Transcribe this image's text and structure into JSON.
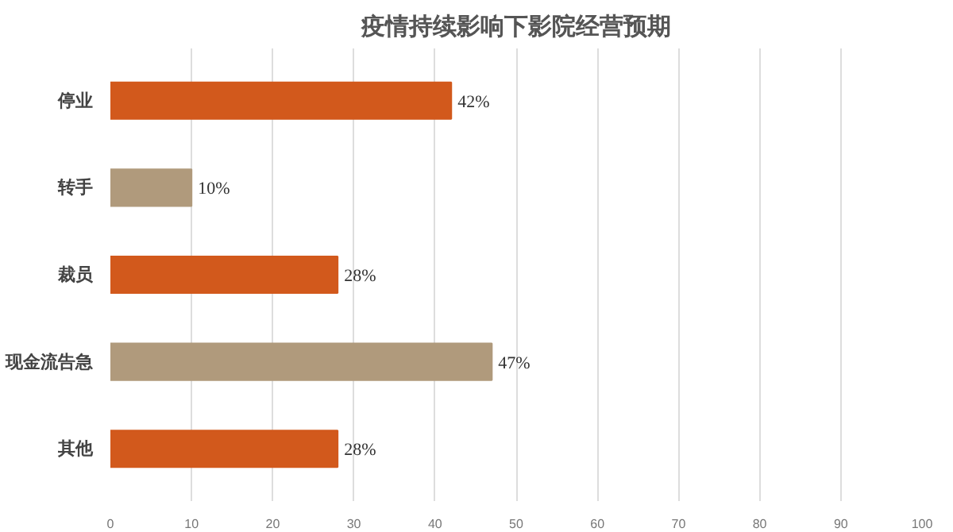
{
  "chart_data": {
    "type": "bar",
    "orientation": "horizontal",
    "title": "疫情持续影响下影院经营预期",
    "categories": [
      "停业",
      "转手",
      "裁员",
      "现金流告急",
      "其他"
    ],
    "values": [
      42,
      10,
      28,
      47,
      28
    ],
    "value_labels": [
      "42%",
      "10%",
      "28%",
      "47%",
      "28%"
    ],
    "colors": [
      "#d2591c",
      "#b09a7c",
      "#d2591c",
      "#b09a7c",
      "#d2591c"
    ],
    "xlim": [
      0,
      100
    ],
    "xticks": [
      0,
      10,
      20,
      30,
      40,
      50,
      60,
      70,
      80,
      90,
      100
    ],
    "grid": "x"
  }
}
